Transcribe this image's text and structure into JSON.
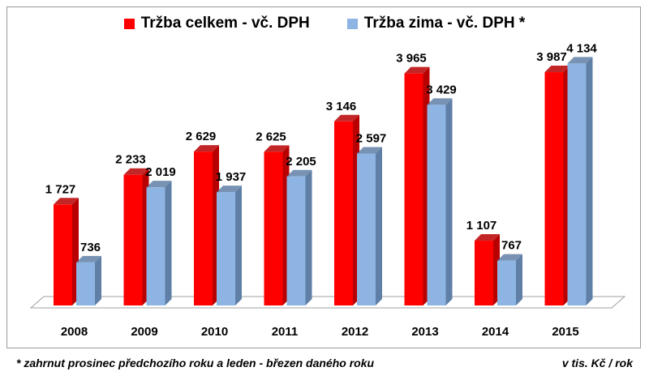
{
  "chart_data": {
    "type": "bar",
    "categories": [
      "2008",
      "2009",
      "2010",
      "2011",
      "2012",
      "2013",
      "2014",
      "2015"
    ],
    "series": [
      {
        "name": "Tržba celkem - vč. DPH",
        "color": "#ff0000",
        "side_color": "#b80000",
        "values": [
          1727,
          2233,
          2629,
          2625,
          3146,
          3965,
          1107,
          3987
        ],
        "labels": [
          "1 727",
          "2 233",
          "2 629",
          "2 625",
          "3 146",
          "3 965",
          "1 107",
          "3 987"
        ]
      },
      {
        "name": "Tržba zima - vč. DPH *",
        "color": "#8db4e2",
        "side_color": "#5f7fa6",
        "values": [
          736,
          2019,
          1937,
          2205,
          2597,
          3429,
          767,
          4134
        ],
        "labels": [
          "736",
          "2 019",
          "1 937",
          "2 205",
          "2 597",
          "3 429",
          "767",
          "4 134"
        ]
      }
    ],
    "ylim": [
      0,
      4500
    ],
    "grid": false,
    "legend_position": "top-center",
    "data_labels": true
  },
  "footnote": "* zahrnut prosinec předchozího roku a leden - březen daného roku",
  "unit_note": "v tis. Kč / rok"
}
